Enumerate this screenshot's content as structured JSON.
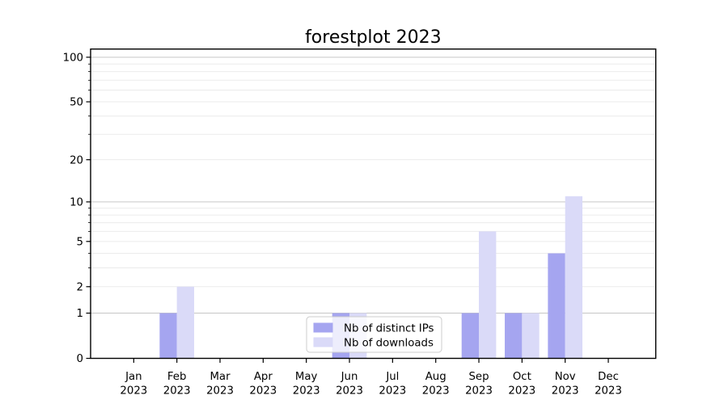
{
  "figure": {
    "background": "#ffffff"
  },
  "chart_data": {
    "type": "bar",
    "title": "forestplot 2023",
    "categories": [
      "Jan",
      "Feb",
      "Mar",
      "Apr",
      "May",
      "Jun",
      "Jul",
      "Aug",
      "Sep",
      "Oct",
      "Nov",
      "Dec"
    ],
    "year_label": "2023",
    "series": [
      {
        "name": "Nb of distinct IPs",
        "color": "#a5a5f0",
        "values": [
          0,
          1,
          0,
          0,
          0,
          1,
          0,
          0,
          1,
          1,
          4,
          0
        ]
      },
      {
        "name": "Nb of downloads",
        "color": "#dadaf8",
        "values": [
          0,
          2,
          0,
          0,
          0,
          1,
          0,
          0,
          6,
          1,
          11,
          0
        ]
      }
    ],
    "yscale": "log1p",
    "ylim": [
      0,
      113.5
    ],
    "yticks": [
      0,
      1,
      2,
      5,
      10,
      20,
      50,
      100
    ],
    "decade_gridlines": [
      1,
      10,
      100
    ],
    "minor_gridlines": [
      2,
      3,
      4,
      5,
      6,
      7,
      8,
      9,
      20,
      30,
      40,
      50,
      60,
      70,
      80,
      90
    ],
    "grid": true,
    "legend": {
      "position": "lower center",
      "background": "#ffffff",
      "background_opacity": 0.8,
      "border_color": "#cccccc"
    },
    "colors": {
      "axis": "#000000",
      "decade_grid": "#c6c6c6",
      "minor_grid": "#ebebeb",
      "text": "#000000"
    }
  }
}
